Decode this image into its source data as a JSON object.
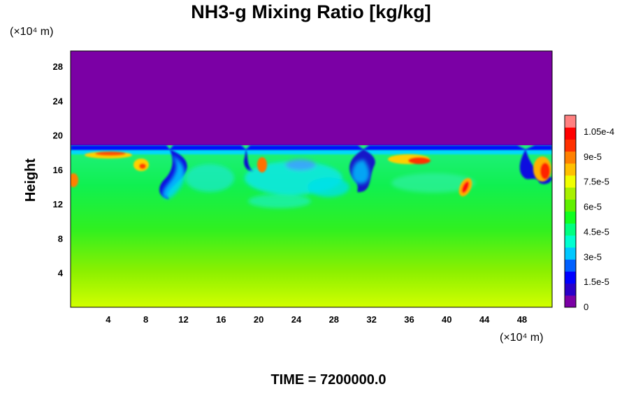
{
  "chart_data": {
    "type": "heatmap",
    "title": "NH3-g Mixing Ratio [kg/kg]",
    "ylabel": "Height",
    "x_unit_label": "(×10⁴ m)",
    "y_unit_label": "(×10⁴ m)",
    "x_ticks": [
      4,
      8,
      12,
      16,
      20,
      24,
      28,
      32,
      36,
      40,
      44,
      48
    ],
    "y_ticks": [
      4,
      8,
      12,
      16,
      20,
      24,
      28
    ],
    "xlim": [
      0,
      51.2
    ],
    "ylim": [
      0,
      29.8
    ],
    "colorbar": {
      "ticks": [
        {
          "value": 0,
          "label": "0"
        },
        {
          "value": 1.5e-05,
          "label": "1.5e-5"
        },
        {
          "value": 3e-05,
          "label": "3e-5"
        },
        {
          "value": 4.5e-05,
          "label": "4.5e-5"
        },
        {
          "value": 6e-05,
          "label": "6e-5"
        },
        {
          "value": 7.5e-05,
          "label": "7.5e-5"
        },
        {
          "value": 9e-05,
          "label": "9e-5"
        },
        {
          "value": 0.000105,
          "label": "1.05e-4"
        }
      ],
      "range": [
        0,
        0.000115
      ],
      "colors": [
        "#7b00a5",
        "#2a00c8",
        "#0000ff",
        "#0060ff",
        "#00c8ff",
        "#00ffd0",
        "#00ff80",
        "#10ff20",
        "#60f000",
        "#a8f000",
        "#f0ff00",
        "#ffc000",
        "#ff8000",
        "#ff3000",
        "#ff0000",
        "#ff8080"
      ]
    },
    "field": {
      "upper_value": 0,
      "interface_height": 18.5,
      "surface_value": 7.5e-05,
      "interface_value": 5e-05
    }
  },
  "footer": {
    "time_label": "TIME = 7200000.0"
  }
}
